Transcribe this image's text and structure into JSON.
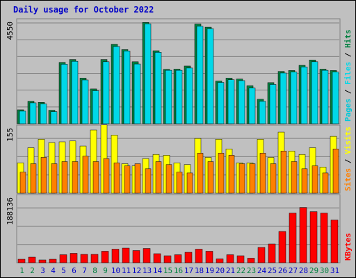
{
  "title": "Daily usage for October 2022",
  "colors": {
    "panel_bg": "#c0c0c0",
    "pages_front": "#00c8d8",
    "pages_back": "#008080",
    "hits_back": "#008040",
    "files_front": "#00d8e8",
    "visits": "#ffff00",
    "sites": "#ff8000",
    "kbytes": "#ff0000",
    "weekend_label": "#008040",
    "weekday_label": "#0000c8"
  },
  "chart_data": [
    {
      "type": "bar",
      "title": "",
      "ymax_label": "4550",
      "ylim": [
        0,
        4550
      ],
      "legend": [
        "Pages",
        "Files",
        "Hits"
      ],
      "categories": [
        "1",
        "2",
        "3",
        "4",
        "5",
        "6",
        "7",
        "8",
        "9",
        "10",
        "11",
        "12",
        "13",
        "14",
        "15",
        "16",
        "17",
        "18",
        "19",
        "20",
        "21",
        "22",
        "23",
        "24",
        "25",
        "26",
        "27",
        "28",
        "29",
        "30",
        "31"
      ],
      "series": [
        {
          "name": "Hits",
          "values": [
            620,
            1000,
            950,
            600,
            2730,
            2860,
            2030,
            1550,
            2860,
            3540,
            3300,
            2760,
            4510,
            3250,
            2420,
            2430,
            2570,
            4440,
            4300,
            1900,
            2030,
            1990,
            1690,
            1090,
            1830,
            2330,
            2370,
            2600,
            2840,
            2430,
            2370
          ]
        },
        {
          "name": "Files",
          "values": [
            560,
            930,
            880,
            540,
            2650,
            2780,
            1950,
            1470,
            2760,
            3440,
            3240,
            2660,
            4450,
            3180,
            2380,
            2380,
            2480,
            4340,
            4230,
            1840,
            1960,
            1920,
            1590,
            1000,
            1750,
            2260,
            2300,
            2530,
            2760,
            2380,
            2300
          ]
        },
        {
          "name": "Pages",
          "values": [
            0,
            0,
            0,
            0,
            0,
            0,
            0,
            0,
            0,
            0,
            0,
            0,
            0,
            0,
            0,
            0,
            0,
            0,
            0,
            0,
            0,
            0,
            0,
            0,
            0,
            0,
            0,
            0,
            0,
            0,
            0
          ]
        }
      ]
    },
    {
      "type": "bar",
      "title": "",
      "ymax_label": "155",
      "ylim": [
        0,
        155
      ],
      "legend": [
        "Sites",
        "Visits"
      ],
      "categories": [
        "1",
        "2",
        "3",
        "4",
        "5",
        "6",
        "7",
        "8",
        "9",
        "10",
        "11",
        "12",
        "13",
        "14",
        "15",
        "16",
        "17",
        "18",
        "19",
        "20",
        "21",
        "22",
        "23",
        "24",
        "25",
        "26",
        "27",
        "28",
        "29",
        "30",
        "31"
      ],
      "series": [
        {
          "name": "Visits",
          "values": [
            72,
            108,
            128,
            120,
            122,
            124,
            112,
            150,
            162,
            138,
            70,
            65,
            82,
            92,
            90,
            72,
            68,
            130,
            85,
            128,
            105,
            72,
            72,
            128,
            85,
            145,
            100,
            92,
            108,
            62,
            135
          ]
        },
        {
          "name": "Sites",
          "values": [
            50,
            70,
            85,
            70,
            75,
            75,
            88,
            75,
            82,
            72,
            65,
            70,
            58,
            75,
            68,
            50,
            48,
            95,
            75,
            95,
            90,
            70,
            70,
            95,
            70,
            100,
            75,
            58,
            65,
            48,
            105
          ]
        }
      ]
    },
    {
      "type": "bar",
      "title": "",
      "ymax_label": "188136",
      "ylim": [
        0,
        188136
      ],
      "legend": [
        "KBytes"
      ],
      "categories": [
        "1",
        "2",
        "3",
        "4",
        "5",
        "6",
        "7",
        "8",
        "9",
        "10",
        "11",
        "12",
        "13",
        "14",
        "15",
        "16",
        "17",
        "18",
        "19",
        "20",
        "21",
        "22",
        "23",
        "24",
        "25",
        "26",
        "27",
        "28",
        "29",
        "30",
        "31"
      ],
      "series": [
        {
          "name": "KBytes",
          "values": [
            10000,
            16000,
            8000,
            10000,
            23000,
            27000,
            24000,
            24000,
            33000,
            39000,
            42000,
            35000,
            41000,
            26000,
            20000,
            23000,
            30000,
            39000,
            33000,
            11000,
            23000,
            20000,
            13000,
            44000,
            54000,
            90000,
            143000,
            159000,
            147000,
            143000,
            123000
          ]
        }
      ]
    }
  ]
}
